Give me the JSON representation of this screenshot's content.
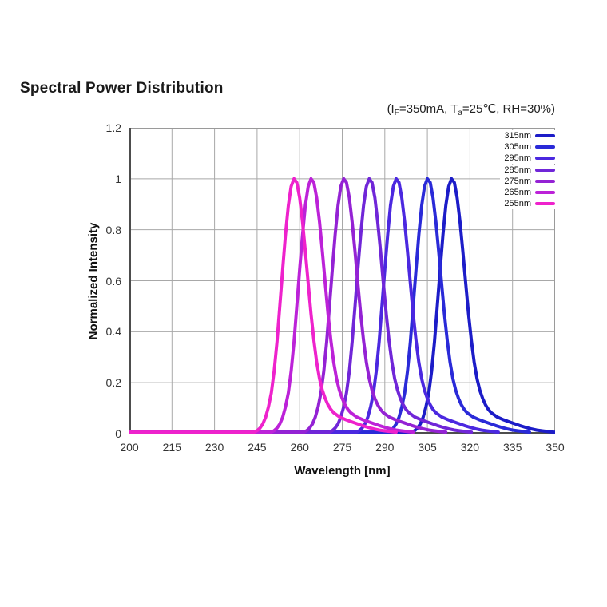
{
  "chart_data": {
    "type": "line",
    "title": "Spectral Power Distribution",
    "subtitle_parts": {
      "p1": "(I",
      "sub1": "F",
      "p2": "=350mA, T",
      "sub2": "a",
      "p3": "=25℃, RH=30%)"
    },
    "xlabel": "Wavelength [nm]",
    "ylabel": "Normalized Intensity",
    "xlim": [
      200,
      350
    ],
    "ylim": [
      0,
      1.2
    ],
    "x_tick_labels": [
      "200",
      "215",
      "230",
      "245",
      "260",
      "275",
      "290",
      "305",
      "320",
      "335",
      "350"
    ],
    "y_tick_labels_top_to_bottom": [
      "1.2",
      "1",
      "0.8",
      "0.6",
      "0.4",
      "0.2",
      "0"
    ],
    "grid": true,
    "legend_position": "inside-top-right",
    "series": [
      {
        "label": "315nm",
        "color": "#1c1cc8",
        "peak_nm": 313.5
      },
      {
        "label": "305nm",
        "color": "#2a2ad8",
        "peak_nm": 305.0
      },
      {
        "label": "295nm",
        "color": "#4b28e0",
        "peak_nm": 294.0
      },
      {
        "label": "285nm",
        "color": "#7026d8",
        "peak_nm": 284.5
      },
      {
        "label": "275nm",
        "color": "#9422d4",
        "peak_nm": 275.5
      },
      {
        "label": "265nm",
        "color": "#bc22d8",
        "peak_nm": 264.0
      },
      {
        "label": "255nm",
        "color": "#ee22cc",
        "peak_nm": 258.0
      }
    ],
    "lineshape_profile": {
      "description": "normalized intensity vs offset from peak wavelength (nm), common to all series",
      "baseline": 0.006,
      "offsets": [
        -14,
        -13,
        -12,
        -11,
        -10,
        -9,
        -8,
        -7,
        -6,
        -5,
        -4,
        -3,
        -2,
        -1,
        0,
        1,
        2,
        3,
        4,
        5,
        6,
        7,
        8,
        9,
        10,
        11,
        12,
        13,
        14,
        16,
        18,
        20,
        22,
        24,
        26,
        28,
        30,
        32,
        34,
        36
      ],
      "values": [
        0.006,
        0.012,
        0.022,
        0.038,
        0.065,
        0.105,
        0.16,
        0.245,
        0.36,
        0.5,
        0.645,
        0.78,
        0.895,
        0.97,
        1.0,
        0.985,
        0.925,
        0.83,
        0.715,
        0.59,
        0.47,
        0.365,
        0.28,
        0.215,
        0.17,
        0.138,
        0.113,
        0.095,
        0.082,
        0.066,
        0.056,
        0.048,
        0.04,
        0.032,
        0.025,
        0.019,
        0.014,
        0.011,
        0.008,
        0.006
      ]
    },
    "colors": {
      "grid": "#a8a8a8",
      "axis": "#4d4d4d",
      "frame": "#9a9a9a",
      "tick_text": "#333333"
    }
  }
}
